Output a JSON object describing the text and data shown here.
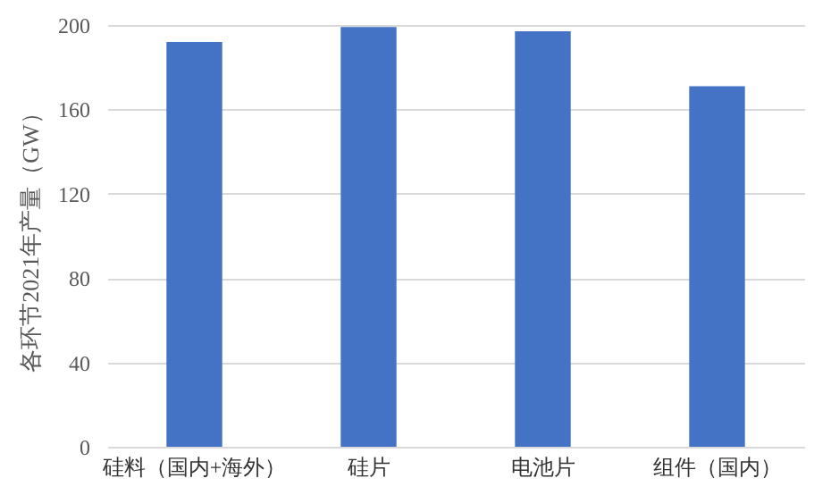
{
  "chart_data": {
    "type": "bar",
    "ylabel": "各环节2021年产量（GW）",
    "categories": [
      "硅料（国内+海外）",
      "硅片",
      "电池片",
      "组件（国内）"
    ],
    "values": [
      192,
      199,
      197,
      171
    ],
    "color": "#4472c4",
    "ylim": [
      0,
      200
    ],
    "yticks": [
      0,
      40,
      80,
      120,
      160,
      200
    ],
    "grid": "y"
  }
}
